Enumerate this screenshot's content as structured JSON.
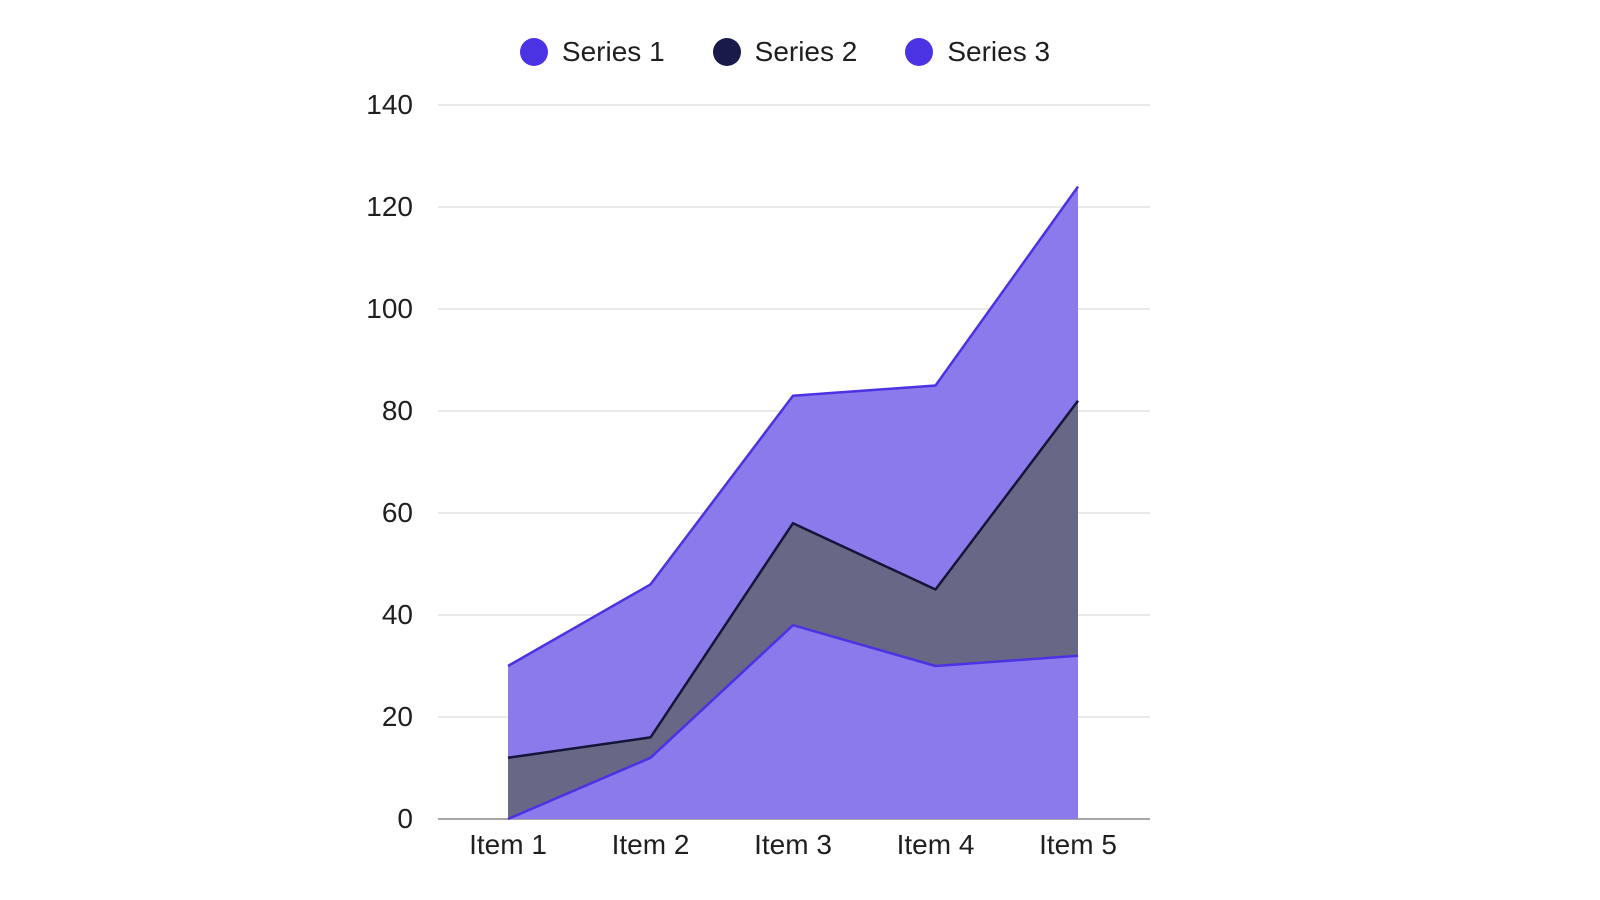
{
  "chart_data": {
    "type": "area",
    "stacked": true,
    "categories": [
      "Item 1",
      "Item 2",
      "Item 3",
      "Item 4",
      "Item 5"
    ],
    "series": [
      {
        "name": "Series 1",
        "values": [
          0,
          12,
          38,
          30,
          32
        ],
        "color": "#4b32e3"
      },
      {
        "name": "Series 2",
        "values": [
          12,
          4,
          20,
          15,
          50
        ],
        "color": "#1a1a4a"
      },
      {
        "name": "Series 3",
        "values": [
          18,
          30,
          25,
          40,
          42
        ],
        "color": "#4b32e3"
      }
    ],
    "ylim": [
      0,
      140
    ],
    "yticks": [
      "0",
      "20",
      "40",
      "60",
      "80",
      "100",
      "120",
      "140"
    ],
    "grid": true,
    "legend_position": "top-center",
    "title": "",
    "xlabel": "",
    "ylabel": ""
  }
}
